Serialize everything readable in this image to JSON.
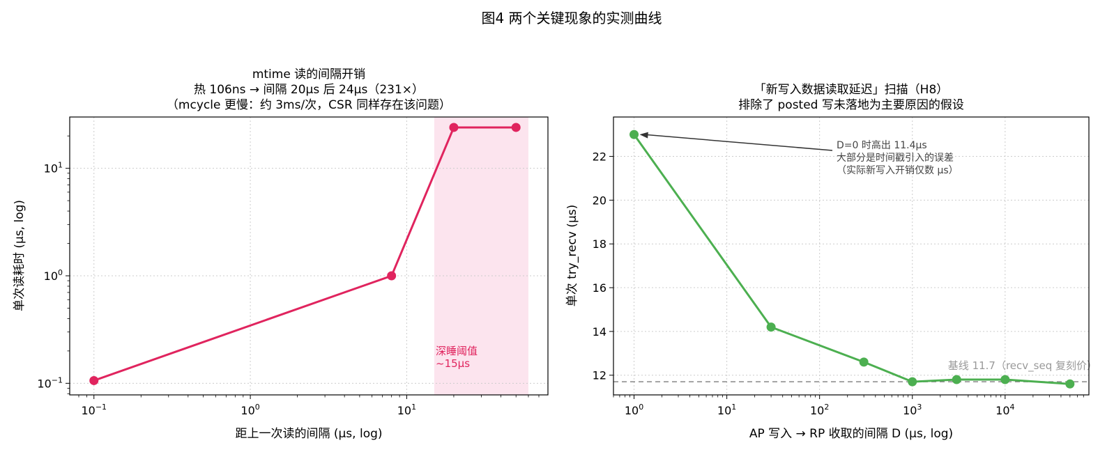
{
  "suptitle": "图4  两个关键现象的实测曲线",
  "colors": {
    "series_left": "#e0245e",
    "series_right": "#4caf50",
    "shade": "#fce4ee",
    "baseline": "#888888",
    "grid": "#cccccc"
  },
  "chart_data": [
    {
      "type": "line",
      "title_lines": [
        "mtime 读的间隔开销",
        "热 106ns → 间隔 20μs 后 24μs（231×）",
        "（mcycle 更慢：约 3ms/次，CSR 同样存在该问题）"
      ],
      "xlabel": "距上一次读的间隔 (μs, log)",
      "ylabel": "单次读耗时 (μs, log)",
      "xscale": "log",
      "yscale": "log",
      "xlim": [
        0.07,
        80
      ],
      "ylim": [
        0.078,
        30
      ],
      "grid": true,
      "x_ticks": [
        {
          "base": "10",
          "exp": "−1",
          "value": 0.1
        },
        {
          "base": "10",
          "exp": "0",
          "value": 1
        },
        {
          "base": "10",
          "exp": "1",
          "value": 10
        }
      ],
      "y_ticks": [
        {
          "base": "10",
          "exp": "−1",
          "value": 0.1
        },
        {
          "base": "10",
          "exp": "0",
          "value": 1
        },
        {
          "base": "10",
          "exp": "1",
          "value": 10
        }
      ],
      "series": [
        {
          "x": [
            0.1,
            8,
            20,
            50
          ],
          "y": [
            0.106,
            1.0,
            24,
            24
          ]
        }
      ],
      "shaded_region": {
        "x": [
          15,
          60
        ],
        "label_lines": [
          "深睡阈值",
          "~15μs"
        ]
      }
    },
    {
      "type": "line",
      "title_lines": [
        "「新写入数据读取延迟」扫描（H8）",
        "排除了 posted 写未落地为主要原因的假设"
      ],
      "xlabel": "AP 写入 → RP 收取的间隔 D (μs, log)",
      "ylabel": "单次 try_recv (μs)",
      "xscale": "log",
      "yscale": "linear",
      "xlim": [
        0.6,
        80000
      ],
      "ylim": [
        11.1,
        23.8
      ],
      "grid": true,
      "x_ticks": [
        {
          "base": "10",
          "exp": "0",
          "value": 1
        },
        {
          "base": "10",
          "exp": "1",
          "value": 10
        },
        {
          "base": "10",
          "exp": "2",
          "value": 100
        },
        {
          "base": "10",
          "exp": "3",
          "value": 1000
        },
        {
          "base": "10",
          "exp": "4",
          "value": 10000
        }
      ],
      "y_ticks": [
        12,
        14,
        16,
        18,
        20,
        22
      ],
      "series": [
        {
          "x": [
            1,
            30,
            300,
            1000,
            3000,
            10000,
            50000
          ],
          "y": [
            23.0,
            14.2,
            12.6,
            11.7,
            11.8,
            11.8,
            11.6
          ]
        }
      ],
      "baseline": {
        "y": 11.7,
        "label": "基线 11.7（recv_seq 复刻价）"
      },
      "annotation": {
        "target_x": 1,
        "target_y": 23.0,
        "lines": [
          "D=0 时高出 11.4μs",
          "大部分是时间戳引入的误差",
          "（实际新写入开销仅数 μs）"
        ]
      }
    }
  ]
}
